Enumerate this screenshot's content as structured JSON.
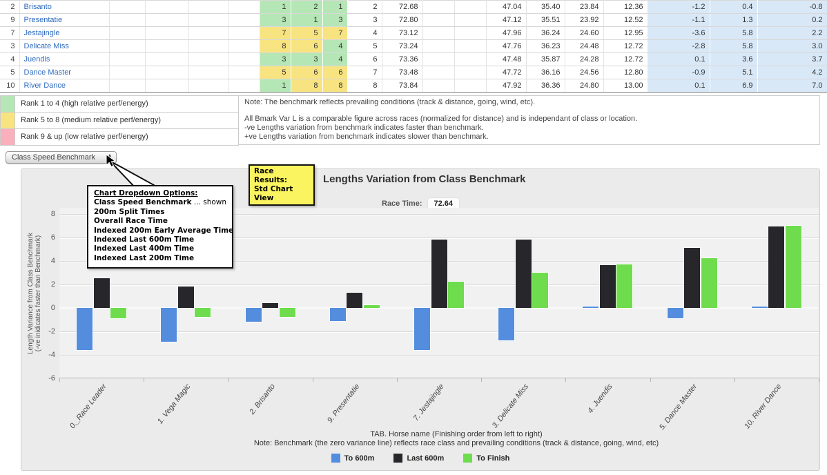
{
  "table": {
    "rows": [
      {
        "num": "2",
        "name": "Brisanto",
        "ranks": [
          1,
          2,
          1
        ],
        "pos": "2",
        "time": "72.68",
        "sections": [
          "47.04",
          "35.40",
          "23.84",
          "12.36"
        ],
        "bmark_vars": [
          "-1.2",
          "0.4",
          "-0.8"
        ]
      },
      {
        "num": "9",
        "name": "Presentatie",
        "ranks": [
          3,
          1,
          3
        ],
        "pos": "3",
        "time": "72.80",
        "sections": [
          "47.12",
          "35.51",
          "23.92",
          "12.52"
        ],
        "bmark_vars": [
          "-1.1",
          "1.3",
          "0.2"
        ]
      },
      {
        "num": "7",
        "name": "Jestajingle",
        "ranks": [
          7,
          5,
          7
        ],
        "pos": "4",
        "time": "73.12",
        "sections": [
          "47.96",
          "36.24",
          "24.60",
          "12.95"
        ],
        "bmark_vars": [
          "-3.6",
          "5.8",
          "2.2"
        ]
      },
      {
        "num": "3",
        "name": "Delicate Miss",
        "ranks": [
          8,
          6,
          4
        ],
        "pos": "5",
        "time": "73.24",
        "sections": [
          "47.76",
          "36.23",
          "24.48",
          "12.72"
        ],
        "bmark_vars": [
          "-2.8",
          "5.8",
          "3.0"
        ]
      },
      {
        "num": "4",
        "name": "Juendis",
        "ranks": [
          3,
          3,
          4
        ],
        "pos": "6",
        "time": "73.36",
        "sections": [
          "47.48",
          "35.87",
          "24.28",
          "12.72"
        ],
        "bmark_vars": [
          "0.1",
          "3.6",
          "3.7"
        ]
      },
      {
        "num": "5",
        "name": "Dance Master",
        "ranks": [
          5,
          6,
          6
        ],
        "pos": "7",
        "time": "73.48",
        "sections": [
          "47.72",
          "36.16",
          "24.56",
          "12.80"
        ],
        "bmark_vars": [
          "-0.9",
          "5.1",
          "4.2"
        ]
      },
      {
        "num": "10",
        "name": "River Dance",
        "ranks": [
          1,
          8,
          8
        ],
        "pos": "8",
        "time": "73.84",
        "sections": [
          "47.92",
          "36.36",
          "24.80",
          "13.00"
        ],
        "bmark_vars": [
          "0.1",
          "6.9",
          "7.0"
        ]
      }
    ]
  },
  "rank_legend": {
    "items": [
      {
        "level": "high",
        "label": "Rank 1 to 4 (high relative perf/energy)"
      },
      {
        "level": "medium",
        "label": "Rank 5 to 8 (medium relative perf/energy)"
      },
      {
        "level": "low",
        "label": "Rank 9 & up (low relative perf/energy)"
      }
    ]
  },
  "notes": {
    "line1": "Note: The benchmark reflects prevailing conditions (track & distance, going, wind, etc).",
    "line2": "All Bmark Var L is a comparable figure across races (normalized for distance) and is independant of class or location.",
    "line3": "-ve Lengths variation from benchmark indicates faster than benchmark.",
    "line4": "+ve Lengths variation from benchmark indicates slower than benchmark."
  },
  "dropdown": {
    "selected": "Class Speed Benchmark"
  },
  "callouts": {
    "race_results": {
      "line1": "Race Results:",
      "line2": "Std Chart View"
    },
    "dropdown_options": {
      "title": "Chart Dropdown Options:",
      "options": [
        {
          "label": "Class Speed Benchmark",
          "suffix": " ... shown"
        },
        {
          "label": "200m Split Times",
          "suffix": ""
        },
        {
          "label": "Overall Race Time",
          "suffix": ""
        },
        {
          "label": "Indexed 200m Early Average Time",
          "suffix": ""
        },
        {
          "label": "Indexed Last 600m Time",
          "suffix": ""
        },
        {
          "label": "Indexed Last 400m Time",
          "suffix": ""
        },
        {
          "label": "Indexed Last 200m Time",
          "suffix": ""
        }
      ]
    }
  },
  "chart_data": {
    "type": "bar",
    "title": "Lengths Variation from Class Benchmark",
    "race_time_label": "Race Time:",
    "race_time_value": "72.64",
    "categories": [
      "0._Race Leader",
      "1. Vega Magic",
      "2. Brisanto",
      "9. Presentatie",
      "7. Jestajingle",
      "3. Delicate Miss",
      "4. Juendis",
      "5. Dance Master",
      "10. River Dance"
    ],
    "series": [
      {
        "name": "To 600m",
        "color": "#548ddd",
        "values": [
          -3.6,
          -2.9,
          -1.2,
          -1.1,
          -3.6,
          -2.8,
          0.1,
          -0.9,
          0.1
        ]
      },
      {
        "name": "Last 600m",
        "color": "#26262b",
        "values": [
          2.5,
          1.8,
          0.4,
          1.3,
          5.8,
          5.8,
          3.6,
          5.1,
          6.9
        ]
      },
      {
        "name": "To Finish",
        "color": "#6edc4d",
        "values": [
          -0.9,
          -0.8,
          -0.8,
          0.2,
          2.2,
          3.0,
          3.7,
          4.2,
          7.0
        ]
      }
    ],
    "ylabel_line1": "Length Variance from Class Benchmark",
    "ylabel_line2": "(-ve inidicates faster than Benchmark)",
    "yticks": [
      8,
      6,
      4,
      2,
      0,
      -2,
      -4,
      -6
    ],
    "ylim": [
      -6,
      8.5
    ],
    "grid": true,
    "legend_position": "bottom",
    "xlabel_line1": "TAB. Horse name (Finishing order from left to right)",
    "xlabel_line2": "Note: Benchmark (the zero variance line) reflects race class and prevailing conditions (track & distance, going, wind, etc)"
  },
  "colors": {
    "rank_high": "#b5e6b5",
    "rank_medium": "#f8e381",
    "rank_low": "#f9afbc",
    "var_cell_bg": "#d9e8f7",
    "link_blue": "#2e6bc0",
    "bar_blue": "#548ddd",
    "bar_black": "#26262b",
    "bar_green": "#6edc4d",
    "callout_yellow": "#f9f45f"
  }
}
